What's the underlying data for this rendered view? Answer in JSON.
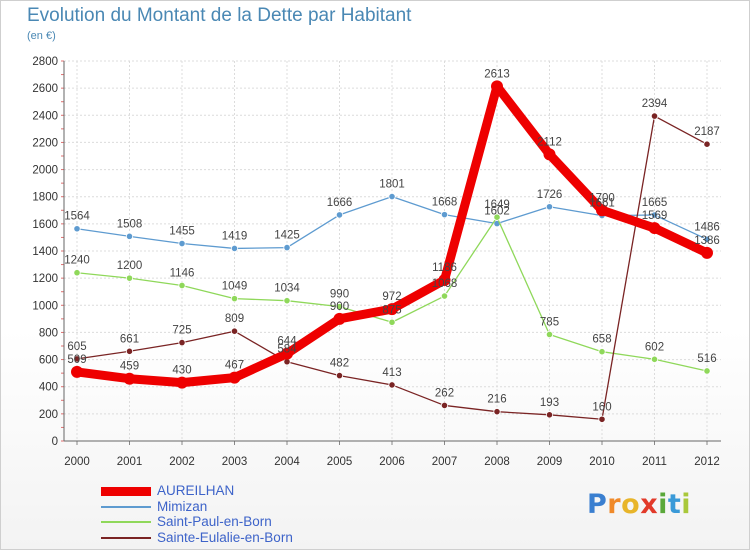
{
  "title": "Evolution du Montant de la Dette par Habitant",
  "unit_label": "(en €)",
  "logo": {
    "letters": [
      "P",
      "r",
      "o",
      "x",
      "i",
      "t",
      "i"
    ],
    "colors": [
      "#3a7fd0",
      "#f08a2a",
      "#e8b52a",
      "#e23a2a",
      "#5aa83a",
      "#3a9ad8",
      "#a9c83a"
    ]
  },
  "chart_data": {
    "type": "line",
    "x": [
      "2000",
      "2001",
      "2002",
      "2003",
      "2004",
      "2005",
      "2006",
      "2007",
      "2008",
      "2009",
      "2010",
      "2011",
      "2012"
    ],
    "ylim": [
      0,
      2800
    ],
    "yticks": [
      "0",
      "200",
      "400",
      "600",
      "800",
      "1000",
      "1200",
      "1400",
      "1600",
      "1800",
      "2000",
      "2200",
      "2400",
      "2600",
      "2800"
    ],
    "grid": true,
    "legend_position": "bottom-left",
    "series": [
      {
        "name": "Mimizan",
        "color": "#5e9bd0",
        "values": [
          1564,
          1508,
          1455,
          1419,
          1425,
          1666,
          1801,
          1668,
          1602,
          1726,
          1661,
          1665,
          1486
        ],
        "labels": [
          "1564",
          "1508",
          "1455",
          "1419",
          "1425",
          "1666",
          "1801",
          "1668",
          "1602",
          "1726",
          "1661",
          "1665",
          "1486"
        ]
      },
      {
        "name": "Saint-Paul-en-Born",
        "color": "#8fd85a",
        "values": [
          1240,
          1200,
          1146,
          1049,
          1034,
          990,
          875,
          1068,
          1649,
          785,
          658,
          602,
          516
        ],
        "labels": [
          "1240",
          "1200",
          "1146",
          "1049",
          "1034",
          "990",
          "875",
          "1068",
          "1649",
          "785",
          "658",
          "602",
          "516"
        ]
      },
      {
        "name": "Sainte-Eulalie-en-Born",
        "color": "#7a2424",
        "values": [
          605,
          661,
          725,
          809,
          584,
          482,
          413,
          262,
          216,
          193,
          160,
          2394,
          2187
        ],
        "labels": [
          "605",
          "661",
          "725",
          "809",
          "584",
          "482",
          "413",
          "262",
          "216",
          "193",
          "160",
          "2394",
          "2187"
        ]
      },
      {
        "name": "AUREILHAN",
        "color": "#ee0000",
        "values": [
          509,
          459,
          430,
          467,
          644,
          900,
          972,
          1186,
          2613,
          2112,
          1700,
          1569,
          1386
        ],
        "labels": [
          "509",
          "459",
          "430",
          "467",
          "644",
          "900",
          "972",
          "1186",
          "2613",
          "2112",
          "1700",
          "1569",
          "1386"
        ]
      }
    ],
    "legend": [
      "AUREILHAN",
      "Mimizan",
      "Saint-Paul-en-Born",
      "Sainte-Eulalie-en-Born"
    ]
  }
}
